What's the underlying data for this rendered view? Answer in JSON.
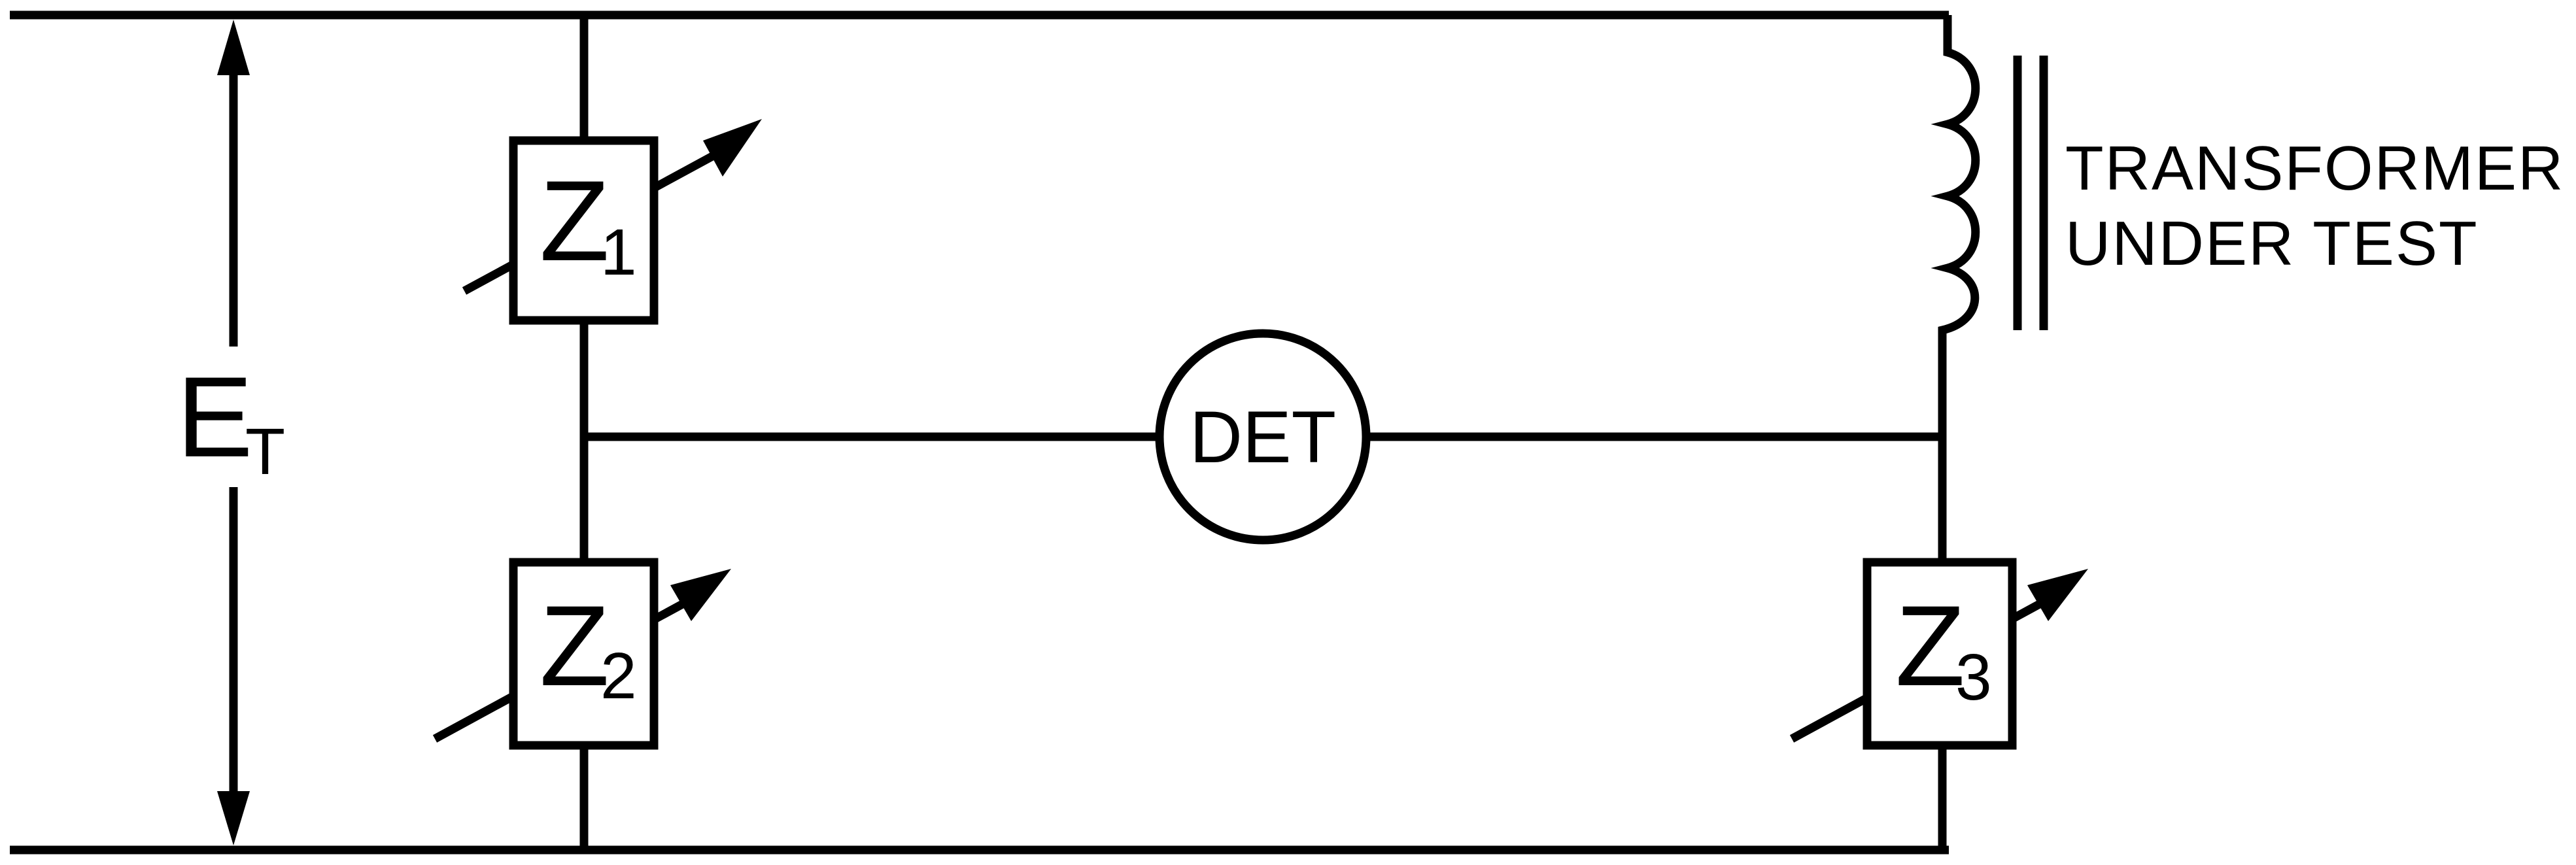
{
  "labels": {
    "voltage_main": "E",
    "voltage_sub": "T",
    "z_main": "Z",
    "z1_sub": "1",
    "z2_sub": "2",
    "z3_sub": "3",
    "detector": "DET",
    "transformer_line1": "TRANSFORMER",
    "transformer_line2": "UNDER TEST"
  },
  "icons": {
    "variable_arrow": "variable-arrow-icon",
    "voltage_arrow": "voltage-arrow-icon",
    "inductor_coil": "inductor-coil-icon",
    "transformer_core": "transformer-core-icon"
  },
  "colors": {
    "ink": "#000000",
    "background": "#ffffff"
  }
}
